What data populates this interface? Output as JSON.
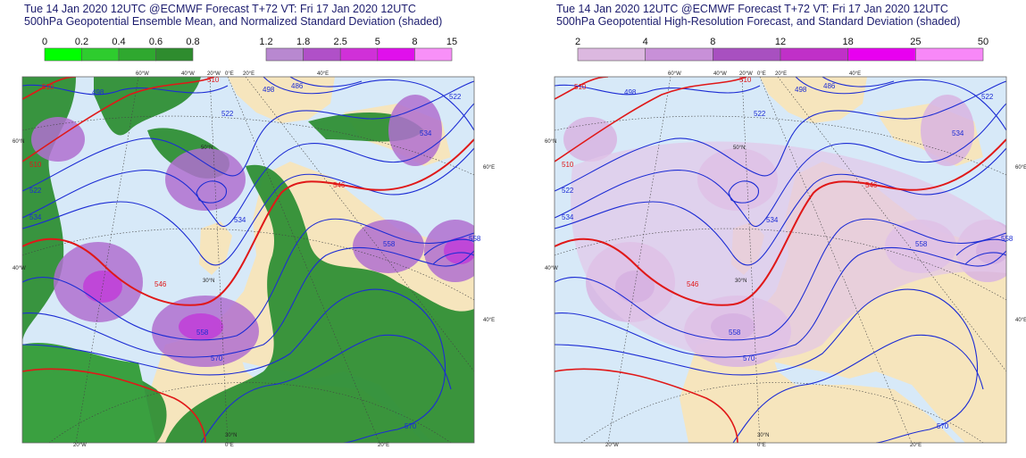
{
  "panels": [
    {
      "title": [
        "Tue 14 Jan 2020 12UTC @ECMWF Forecast T+72 VT: Fri 17 Jan 2020 12UTC",
        "500hPa Geopotential Ensemble Mean, and Normalized Standard Deviation (shaded)"
      ],
      "legends": [
        {
          "labels": [
            "0",
            "0.2",
            "0.4",
            "0.6",
            "0.8"
          ],
          "colors": [
            "#00ff00",
            "#2ecc2e",
            "#2fa82f",
            "#2e8c2e"
          ]
        },
        {
          "labels": [
            "1.2",
            "1.8",
            "2.5",
            "5",
            "8",
            "15"
          ],
          "colors": [
            "#b888d0",
            "#b050c8",
            "#d030d8",
            "#e010ec",
            "#f890f8"
          ]
        }
      ],
      "contour_labels": [
        "510",
        "498",
        "510",
        "522",
        "534",
        "546",
        "558",
        "570",
        "534",
        "522",
        "546",
        "558",
        "558",
        "522",
        "534",
        "498",
        "486",
        "570",
        "510"
      ],
      "grid_labels": [
        "60°W",
        "40°W",
        "20°W",
        "0°E",
        "20°E",
        "40°E",
        "60°N",
        "40°W",
        "60°E",
        "40°E",
        "20°W",
        "0°E",
        "20°E",
        "30°N",
        "50°N",
        "30°N"
      ]
    },
    {
      "title": [
        "Tue 14 Jan 2020 12UTC @ECMWF Forecast T+72 VT: Fri 17 Jan 2020 12UTC",
        "500hPa Geopotential High-Resolution Forecast, and Standard Deviation (shaded)"
      ],
      "legends": [
        {
          "labels": [
            "2",
            "4",
            "8",
            "12",
            "18",
            "25",
            "50"
          ],
          "colors": [
            "#dcb8e0",
            "#c890d8",
            "#a850c0",
            "#c030c8",
            "#e800f0",
            "#f888f8"
          ]
        }
      ],
      "contour_labels": [
        "510",
        "498",
        "510",
        "522",
        "534",
        "546",
        "558",
        "570",
        "534",
        "522",
        "546",
        "558",
        "558",
        "522",
        "534",
        "498",
        "486",
        "570",
        "510"
      ],
      "grid_labels": [
        "60°W",
        "40°W",
        "20°W",
        "0°E",
        "20°E",
        "40°E",
        "60°N",
        "40°W",
        "60°E",
        "40°E",
        "20°W",
        "0°E",
        "20°E",
        "30°N",
        "50°N",
        "30°N"
      ]
    }
  ]
}
